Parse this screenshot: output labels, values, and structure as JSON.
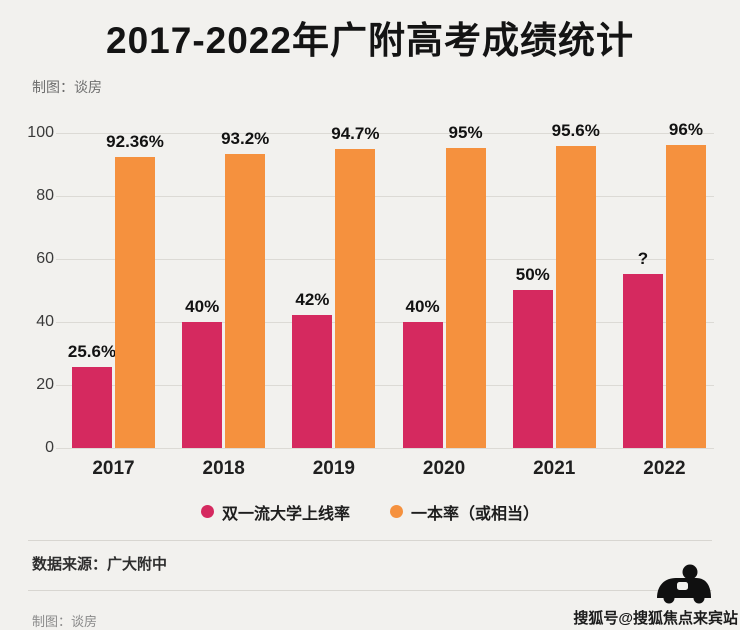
{
  "title": "2017-2022年广附高考成绩统计",
  "credit_top": "制图：谈房",
  "source": "数据来源：广大附中",
  "credit_bottom": "制图：谈房",
  "watermark": "搜狐号@搜狐焦点来宾站",
  "colors": {
    "series1": "#d5295f",
    "series2": "#f5913e",
    "background": "#f2f1ee",
    "gridline": "#dcdad5",
    "text": "#141414"
  },
  "chart_data": {
    "type": "bar",
    "title": "2017-2022年广附高考成绩统计",
    "categories": [
      "2017",
      "2018",
      "2019",
      "2020",
      "2021",
      "2022"
    ],
    "series": [
      {
        "name": "双一流大学上线率",
        "color": "#d5295f",
        "values": [
          25.6,
          40,
          42,
          40,
          50,
          55
        ],
        "labels": [
          "25.6%",
          "40%",
          "42%",
          "40%",
          "50%",
          "?"
        ]
      },
      {
        "name": "一本率（或相当）",
        "color": "#f5913e",
        "values": [
          92.36,
          93.2,
          94.7,
          95,
          95.6,
          96
        ],
        "labels": [
          "92.36%",
          "93.2%",
          "94.7%",
          "95%",
          "95.6%",
          "96%"
        ]
      }
    ],
    "xlabel": "",
    "ylabel": "",
    "ylim": [
      0,
      100
    ],
    "yticks": [
      0,
      20,
      40,
      60,
      80,
      100
    ],
    "grid": true,
    "legend_position": "bottom"
  }
}
